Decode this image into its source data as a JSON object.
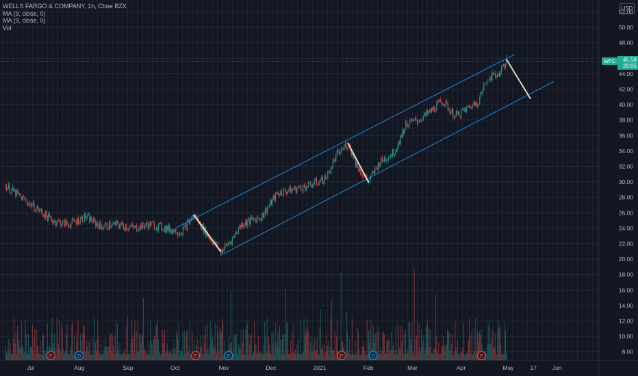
{
  "legend": {
    "symbol_line": "WELLS FARGO & COMPANY, 1h, Cboe BZX",
    "ma1": "MA (9, close, 0)",
    "ma2": "MA (9, close, 0)",
    "vol": "Vol"
  },
  "currency": "USD",
  "price_badge": {
    "symbol": "WFC",
    "price": "45.58",
    "countdown": "20:05"
  },
  "colors": {
    "background": "#131722",
    "up": "#26a69a",
    "down": "#ef5350",
    "channel": "#2196f3",
    "projection": "#e6dcc1",
    "axis_text": "#b2b5be"
  },
  "chart_data": {
    "type": "candlestick",
    "title": "WELLS FARGO & COMPANY, 1h, Cboe BZX",
    "y_axis": {
      "ticks": [
        "52.00",
        "50.00",
        "48.00",
        "46.00",
        "44.00",
        "42.00",
        "40.00",
        "38.00",
        "36.00",
        "34.00",
        "32.00",
        "30.00",
        "28.00",
        "26.00",
        "24.00",
        "22.00",
        "20.00",
        "18.00",
        "16.00",
        "14.00",
        "12.00",
        "10.00",
        "8.00"
      ],
      "ylim": [
        7,
        52
      ],
      "position": "right"
    },
    "x_axis": {
      "ticks": [
        "Jul",
        "Aug",
        "Sep",
        "Oct",
        "Nov",
        "Dec",
        "2021",
        "Feb",
        "Mar",
        "Apr",
        "May",
        "17",
        "Jun"
      ]
    },
    "price_path": [
      {
        "date": "2020-06-15",
        "price": 29.5
      },
      {
        "date": "2020-06-25",
        "price": 28.0
      },
      {
        "date": "2020-07-05",
        "price": 26.5
      },
      {
        "date": "2020-07-15",
        "price": 25.0
      },
      {
        "date": "2020-07-25",
        "price": 24.5
      },
      {
        "date": "2020-08-05",
        "price": 25.5
      },
      {
        "date": "2020-08-15",
        "price": 24.2
      },
      {
        "date": "2020-08-25",
        "price": 24.5
      },
      {
        "date": "2020-09-05",
        "price": 24.0
      },
      {
        "date": "2020-09-15",
        "price": 24.5
      },
      {
        "date": "2020-09-25",
        "price": 24.0
      },
      {
        "date": "2020-10-05",
        "price": 23.5
      },
      {
        "date": "2020-10-13",
        "price": 25.7
      },
      {
        "date": "2020-10-22",
        "price": 23.0
      },
      {
        "date": "2020-10-30",
        "price": 21.0
      },
      {
        "date": "2020-11-06",
        "price": 22.5
      },
      {
        "date": "2020-11-12",
        "price": 24.5
      },
      {
        "date": "2020-11-25",
        "price": 25.5
      },
      {
        "date": "2020-12-05",
        "price": 28.5
      },
      {
        "date": "2020-12-15",
        "price": 29.0
      },
      {
        "date": "2020-12-25",
        "price": 29.5
      },
      {
        "date": "2021-01-05",
        "price": 30.5
      },
      {
        "date": "2021-01-12",
        "price": 33.5
      },
      {
        "date": "2021-01-19",
        "price": 35.0
      },
      {
        "date": "2021-01-25",
        "price": 32.0
      },
      {
        "date": "2021-02-01",
        "price": 30.0
      },
      {
        "date": "2021-02-08",
        "price": 32.5
      },
      {
        "date": "2021-02-18",
        "price": 34.0
      },
      {
        "date": "2021-02-25",
        "price": 37.5
      },
      {
        "date": "2021-03-05",
        "price": 38.0
      },
      {
        "date": "2021-03-12",
        "price": 39.0
      },
      {
        "date": "2021-03-20",
        "price": 40.5
      },
      {
        "date": "2021-03-28",
        "price": 38.5
      },
      {
        "date": "2021-04-05",
        "price": 39.5
      },
      {
        "date": "2021-04-12",
        "price": 40.5
      },
      {
        "date": "2021-04-18",
        "price": 43.5
      },
      {
        "date": "2021-04-25",
        "price": 44.0
      },
      {
        "date": "2021-04-30",
        "price": 45.8
      }
    ],
    "volume_events": [
      {
        "date": "2020-07-14",
        "label": "E"
      },
      {
        "date": "2020-08-01",
        "label": "D"
      },
      {
        "date": "2020-10-14",
        "label": "E"
      },
      {
        "date": "2020-11-04",
        "label": "D"
      },
      {
        "date": "2021-01-15",
        "label": "E"
      },
      {
        "date": "2021-02-04",
        "label": "D"
      },
      {
        "date": "2021-04-14",
        "label": "E"
      }
    ],
    "channel": {
      "upper": [
        {
          "date": "2020-10-01",
          "price": 24.0
        },
        {
          "date": "2021-05-05",
          "price": 46.5
        }
      ],
      "lower": [
        {
          "date": "2020-10-30",
          "price": 20.5
        },
        {
          "date": "2021-05-30",
          "price": 43.0
        }
      ]
    },
    "projections": [
      [
        {
          "date": "2020-10-13",
          "price": 25.7
        },
        {
          "date": "2020-10-30",
          "price": 21.0
        }
      ],
      [
        {
          "date": "2021-01-19",
          "price": 35.0
        },
        {
          "date": "2021-02-01",
          "price": 30.0
        }
      ],
      [
        {
          "date": "2021-04-30",
          "price": 45.8
        },
        {
          "date": "2021-05-15",
          "price": 40.8
        }
      ]
    ],
    "last_price": 45.58
  }
}
